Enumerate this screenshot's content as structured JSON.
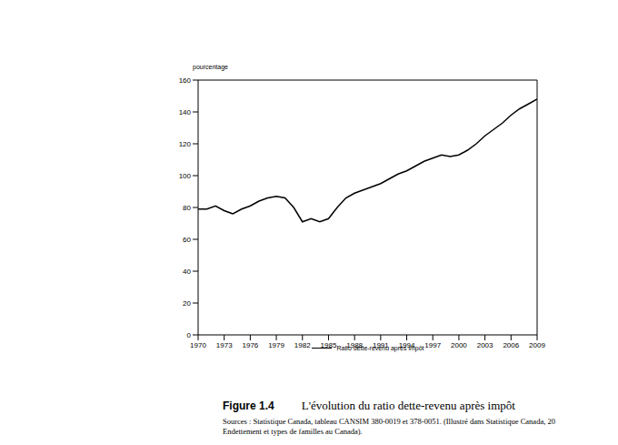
{
  "chart_data": {
    "type": "line",
    "title": "L'évolution du ratio dette-revenu après impôt",
    "y_label": "pourcentage",
    "annotations": [
      "Figure 1.4",
      "Sources : Statistique Canada, tableau CANSIM 380-0019 et 378-0051. (Illustré dans Statistique Canada, 20",
      "Endettement et types de familles au Canada)."
    ],
    "x": [
      1970,
      1971,
      1972,
      1973,
      1974,
      1975,
      1976,
      1977,
      1978,
      1979,
      1980,
      1981,
      1982,
      1983,
      1984,
      1985,
      1986,
      1987,
      1988,
      1989,
      1990,
      1991,
      1992,
      1993,
      1994,
      1995,
      1996,
      1997,
      1998,
      1999,
      2000,
      2001,
      2002,
      2003,
      2004,
      2005,
      2006,
      2007,
      2008,
      2009
    ],
    "series": [
      {
        "name": "Ratio dette-revenu après impôt",
        "color": "#000000",
        "values": [
          79,
          79,
          81,
          78,
          76,
          79,
          81,
          84,
          86,
          87,
          86,
          80,
          71,
          73,
          71,
          73,
          80,
          86,
          89,
          91,
          93,
          95,
          98,
          101,
          103,
          106,
          109,
          111,
          113,
          112,
          113,
          116,
          120,
          125,
          129,
          133,
          138,
          142,
          145,
          148
        ]
      }
    ],
    "xlim": [
      1970,
      2009
    ],
    "xticks": [
      1970,
      1973,
      1976,
      1979,
      1982,
      1985,
      1988,
      1991,
      1994,
      1997,
      2000,
      2003,
      2006,
      2009
    ],
    "ylim": [
      0,
      160
    ],
    "yticks": [
      0,
      20,
      40,
      60,
      80,
      100,
      120,
      140,
      160
    ],
    "grid": false
  }
}
